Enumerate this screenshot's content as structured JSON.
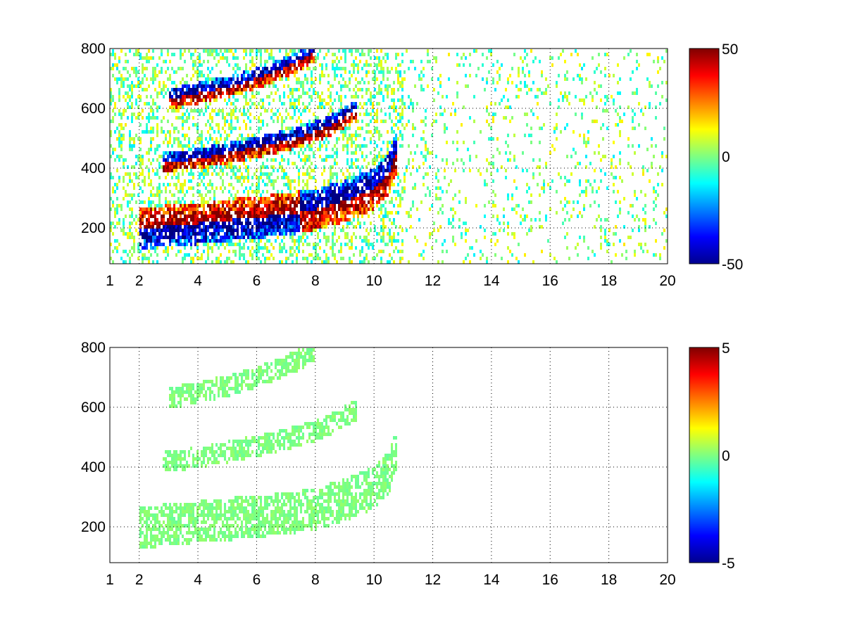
{
  "chart_data": [
    {
      "type": "heatmap",
      "title": "",
      "xlabel": "",
      "ylabel": "",
      "xlim": [
        1,
        20
      ],
      "ylim": [
        80,
        800
      ],
      "grid": true,
      "x_ticks": [
        1,
        2,
        4,
        6,
        8,
        10,
        12,
        14,
        16,
        18,
        20
      ],
      "y_ticks": [
        200,
        400,
        600,
        800
      ],
      "colormap": "jet",
      "clim": [
        -50,
        50
      ],
      "colorbar_ticks": [
        "-50",
        "0",
        "50"
      ],
      "ridges": [
        {
          "x": [
            2.0,
            3.0,
            4.0,
            5.0,
            6.0,
            7.0,
            8.0,
            9.0,
            10.0,
            10.5,
            10.8
          ],
          "y": [
            200,
            205,
            215,
            225,
            235,
            245,
            260,
            290,
            330,
            380,
            460
          ]
        },
        {
          "x": [
            2.8,
            3.5,
            4.5,
            5.5,
            6.5,
            7.5,
            8.5,
            9.4
          ],
          "y": [
            415,
            425,
            440,
            460,
            480,
            505,
            540,
            590
          ]
        },
        {
          "x": [
            3.0,
            4.0,
            5.0,
            6.0,
            6.8,
            7.5,
            8.0
          ],
          "y": [
            630,
            650,
            670,
            700,
            730,
            760,
            790
          ]
        }
      ]
    },
    {
      "type": "heatmap",
      "title": "",
      "xlabel": "",
      "ylabel": "",
      "xlim": [
        1,
        20
      ],
      "ylim": [
        80,
        800
      ],
      "grid": true,
      "x_ticks": [
        1,
        2,
        4,
        6,
        8,
        10,
        12,
        14,
        16,
        18,
        20
      ],
      "y_ticks": [
        200,
        400,
        600,
        800
      ],
      "colormap": "jet",
      "clim": [
        -5,
        5
      ],
      "colorbar_ticks": [
        "-5",
        "0",
        "5"
      ],
      "ridges": [
        {
          "x": [
            2.0,
            3.0,
            4.0,
            5.0,
            6.0,
            7.0,
            8.0,
            9.0,
            10.0,
            10.5,
            10.8
          ],
          "y": [
            200,
            205,
            215,
            225,
            235,
            245,
            260,
            290,
            330,
            380,
            460
          ]
        },
        {
          "x": [
            2.8,
            3.5,
            4.5,
            5.5,
            6.5,
            7.5,
            8.5,
            9.4
          ],
          "y": [
            415,
            425,
            440,
            460,
            480,
            505,
            540,
            590
          ]
        },
        {
          "x": [
            3.0,
            4.0,
            5.0,
            6.0,
            6.8,
            7.5,
            8.0
          ],
          "y": [
            630,
            650,
            670,
            700,
            730,
            760,
            790
          ]
        }
      ]
    }
  ]
}
